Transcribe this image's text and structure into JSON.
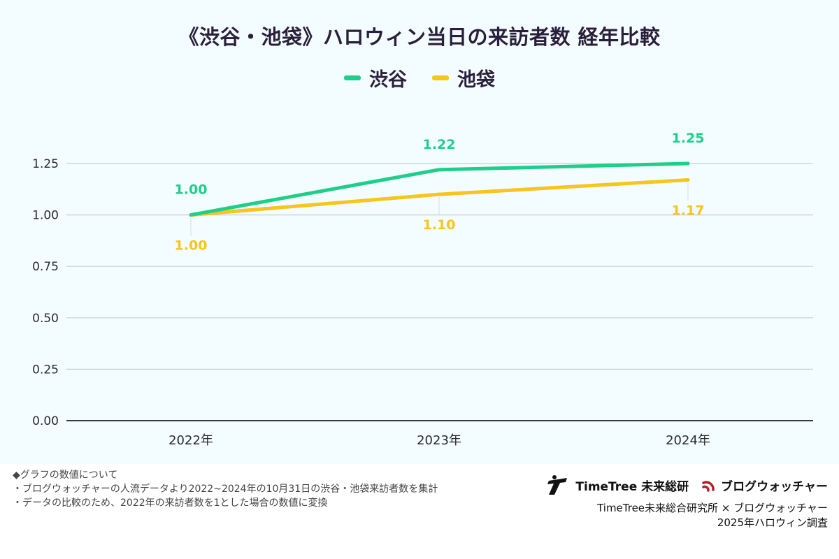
{
  "title": "《渋谷・池袋》ハロウィン当日の来訪者数 経年比較",
  "colors": {
    "shibuya": "#1ecf8a",
    "ikebukuro": "#f7c51c",
    "grid": "#c7ced3",
    "baseline": "#3a3a3a",
    "background": "#f3fcfe"
  },
  "chart_data": {
    "type": "line",
    "title": "《渋谷・池袋》ハロウィン当日の来訪者数 経年比較",
    "categories": [
      "2022年",
      "2023年",
      "2024年"
    ],
    "series": [
      {
        "name": "渋谷",
        "values": [
          1.0,
          1.22,
          1.25
        ],
        "labels": [
          "1.00",
          "1.22",
          "1.25"
        ]
      },
      {
        "name": "池袋",
        "values": [
          1.0,
          1.1,
          1.17
        ],
        "labels": [
          "1.00",
          "1.10",
          "1.17"
        ]
      }
    ],
    "yticks": [
      "0.00",
      "0.25",
      "0.50",
      "0.75",
      "1.00",
      "1.25"
    ],
    "ylim": [
      0,
      1.25
    ],
    "grid": true,
    "legend": "top-center"
  },
  "notes": {
    "heading": "◆グラフの数値について",
    "line1": "・ブログウォッチャーの人流データより2022~2024年の10月31日の渋谷・池袋来訪者数を集計",
    "line2": "・データの比較のため、2022年の来訪者数を1とした場合の数値に変換"
  },
  "credits": {
    "logo1": "TimeTree 未来総研",
    "logo2": "ブログウォッチャー",
    "line1": "TimeTree未来総合研究所 × ブログウォッチャー",
    "line2": "2025年ハロウィン調査"
  }
}
